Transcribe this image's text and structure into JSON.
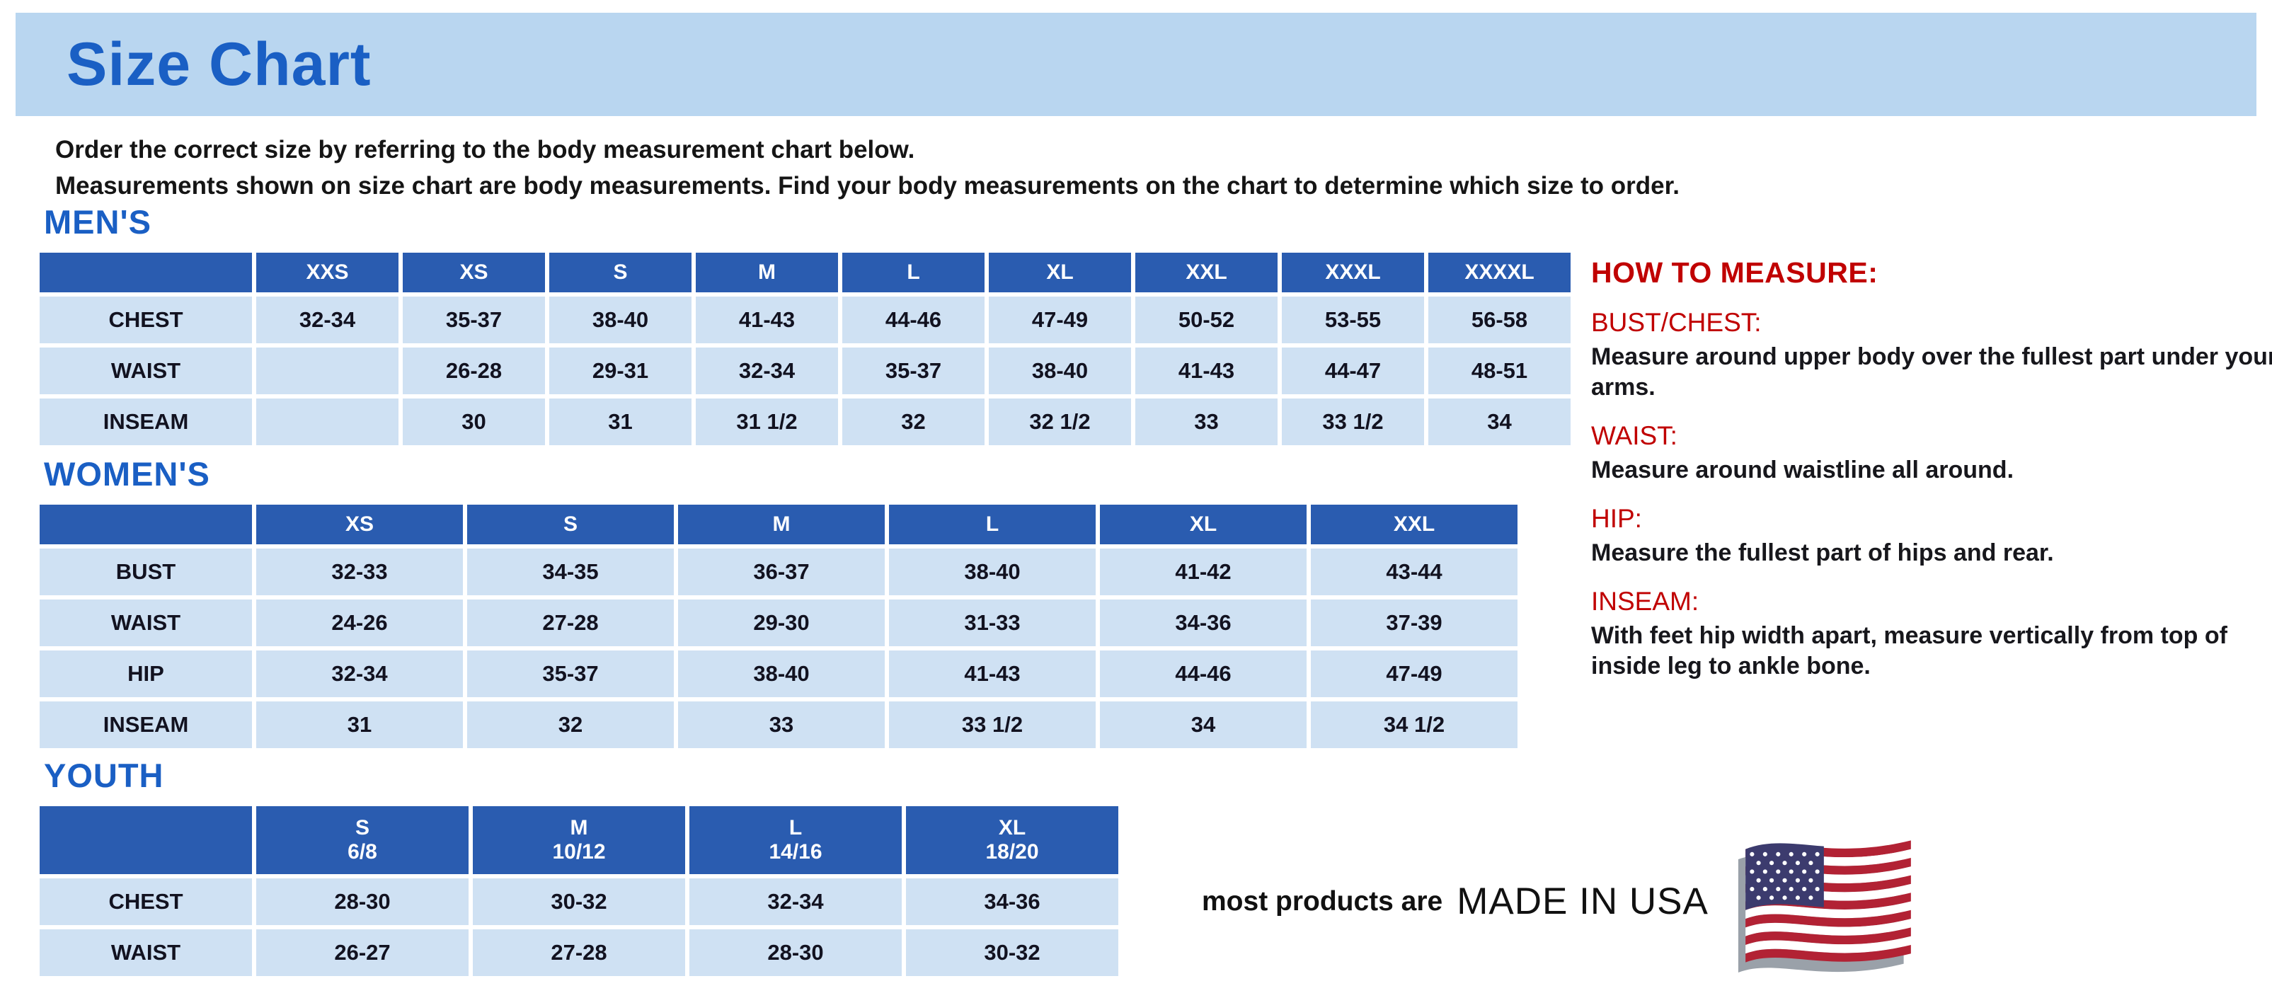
{
  "page": {
    "title": "Size Chart",
    "intro_line1": "Order the correct size by referring to the body measurement chart below.",
    "intro_line2": "Measurements shown on size chart are body measurements.  Find your body measurements on the chart to determine which size to order."
  },
  "colors": {
    "band_background": "#b9d6f0",
    "heading_blue": "#1a5fc4",
    "table_header_blue": "#2a5cb0",
    "cell_light_blue": "#cfe1f3",
    "accent_red": "#c00000"
  },
  "tables": [
    {
      "id": "mens",
      "heading": "MEN'S",
      "columns": [
        "XXS",
        "XS",
        "S",
        "M",
        "L",
        "XL",
        "XXL",
        "XXXL",
        "XXXXL"
      ],
      "rows": [
        {
          "label": "CHEST",
          "values": [
            "32-34",
            "35-37",
            "38-40",
            "41-43",
            "44-46",
            "47-49",
            "50-52",
            "53-55",
            "56-58"
          ]
        },
        {
          "label": "WAIST",
          "values": [
            "",
            "26-28",
            "29-31",
            "32-34",
            "35-37",
            "38-40",
            "41-43",
            "44-47",
            "48-51"
          ]
        },
        {
          "label": "INSEAM",
          "values": [
            "",
            "30",
            "31",
            "31 1/2",
            "32",
            "32 1/2",
            "33",
            "33 1/2",
            "34"
          ]
        }
      ]
    },
    {
      "id": "womens",
      "heading": "WOMEN'S",
      "columns": [
        "XS",
        "S",
        "M",
        "L",
        "XL",
        "XXL"
      ],
      "rows": [
        {
          "label": "BUST",
          "values": [
            "32-33",
            "34-35",
            "36-37",
            "38-40",
            "41-42",
            "43-44"
          ]
        },
        {
          "label": "WAIST",
          "values": [
            "24-26",
            "27-28",
            "29-30",
            "31-33",
            "34-36",
            "37-39"
          ]
        },
        {
          "label": "HIP",
          "values": [
            "32-34",
            "35-37",
            "38-40",
            "41-43",
            "44-46",
            "47-49"
          ]
        },
        {
          "label": "INSEAM",
          "values": [
            "31",
            "32",
            "33",
            "33 1/2",
            "34",
            "34 1/2"
          ]
        }
      ]
    },
    {
      "id": "youth",
      "heading": "YOUTH",
      "columns": [
        "S\n6/8",
        "M\n10/12",
        "L\n14/16",
        "XL\n18/20"
      ],
      "rows": [
        {
          "label": "CHEST",
          "values": [
            "28-30",
            "30-32",
            "32-34",
            "34-36"
          ]
        },
        {
          "label": "WAIST",
          "values": [
            "26-27",
            "27-28",
            "28-30",
            "30-32"
          ]
        }
      ]
    }
  ],
  "how_to_measure": {
    "heading": "HOW TO MEASURE:",
    "items": [
      {
        "term": "BUST/CHEST:",
        "description": "Measure around upper body over the fullest part under your arms."
      },
      {
        "term": "WAIST:",
        "description": "Measure around waistline all around."
      },
      {
        "term": "HIP:",
        "description": "Measure the fullest part of hips and rear."
      },
      {
        "term": "INSEAM:",
        "description": "With feet hip width apart, measure vertically from top of inside leg to ankle bone."
      }
    ]
  },
  "footer": {
    "made_in_prefix": "most products are",
    "made_in": "MADE IN USA",
    "flag_icon": "us-flag-icon"
  }
}
